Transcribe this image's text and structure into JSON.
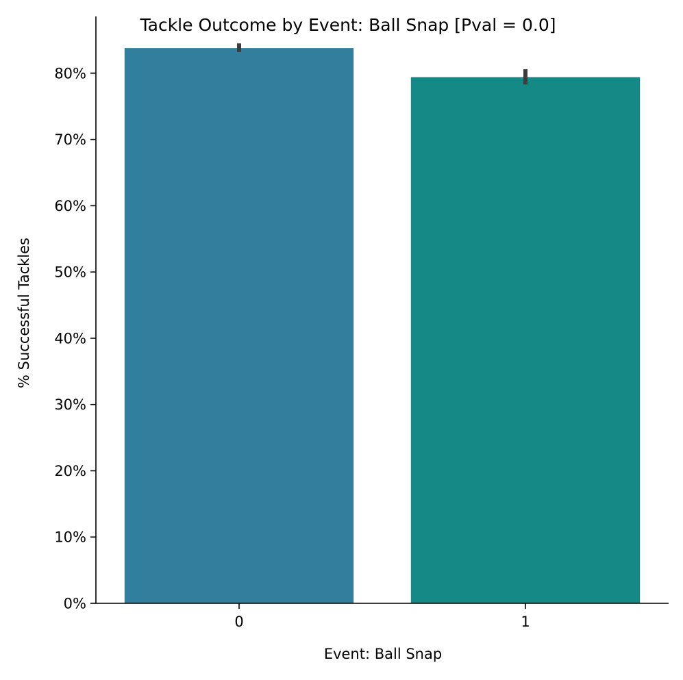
{
  "chart_data": {
    "type": "bar",
    "title": "Tackle Outcome by Event: Ball Snap [Pval = 0.0]",
    "xlabel": "Event: Ball Snap",
    "ylabel": "% Successful Tackles",
    "categories": [
      "0",
      "1"
    ],
    "values": [
      83.8,
      79.4
    ],
    "error_bars": [
      {
        "low": 83.2,
        "high": 84.5
      },
      {
        "low": 78.3,
        "high": 80.6
      }
    ],
    "bar_colors": [
      "#317f9d",
      "#148986"
    ],
    "error_bar_color": "#3c3c3c",
    "ylim": [
      0,
      86.5
    ],
    "yticks": [
      0,
      10,
      20,
      30,
      40,
      50,
      60,
      70,
      80
    ],
    "ytick_labels": [
      "0%",
      "10%",
      "20%",
      "30%",
      "40%",
      "50%",
      "60%",
      "70%",
      "80%"
    ],
    "grid": false,
    "legend": "none"
  }
}
